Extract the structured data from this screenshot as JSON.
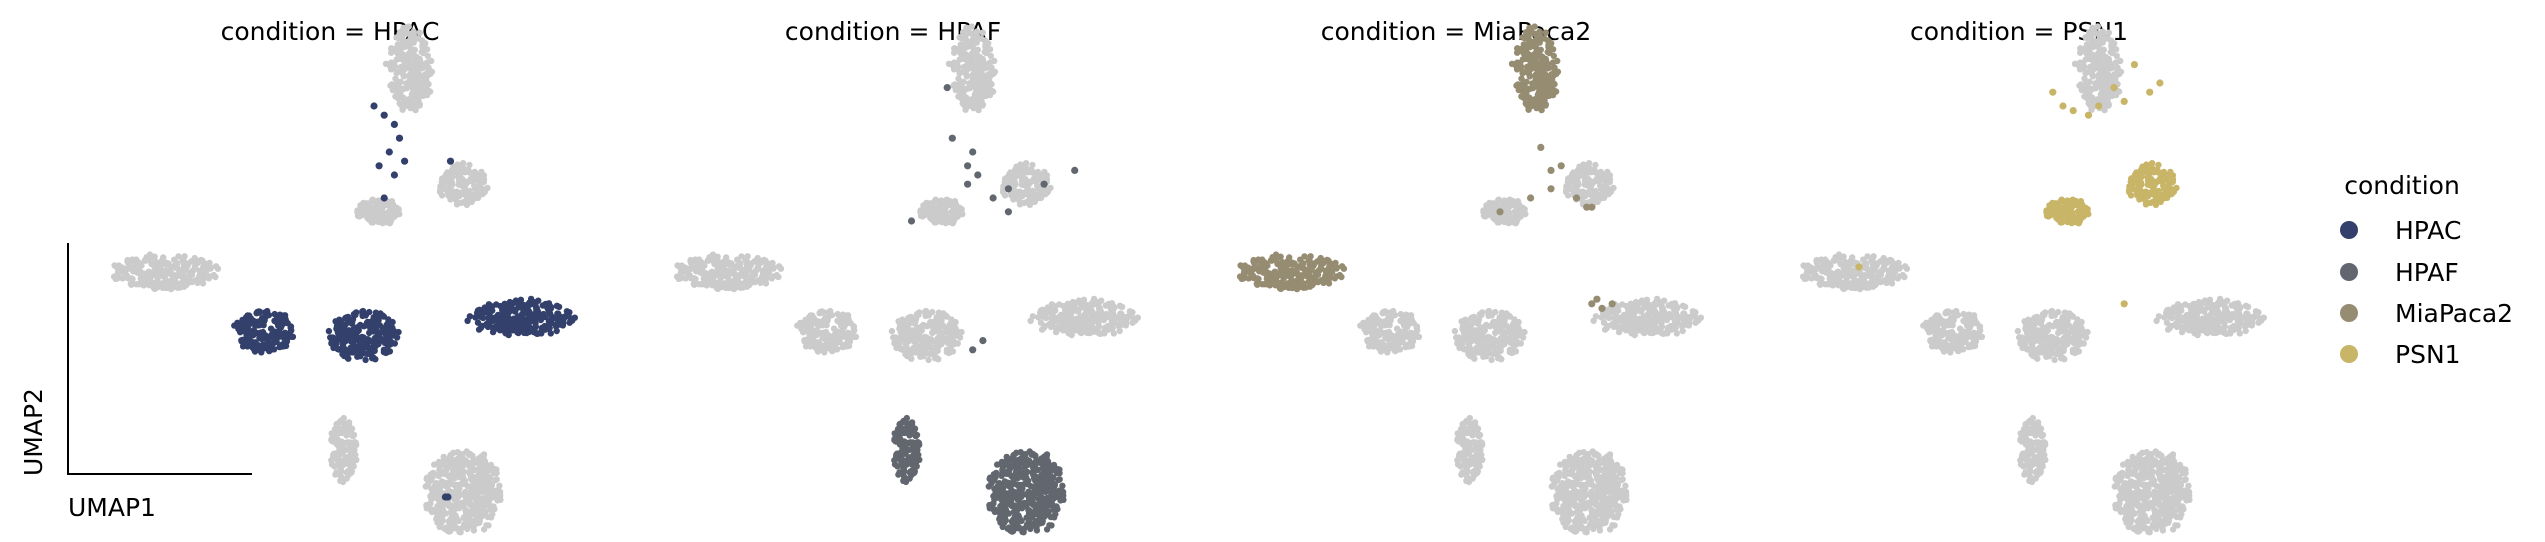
{
  "chart_data": {
    "type": "scatter",
    "plot_kind": "UMAP embedding, faceted by condition",
    "xlabel": "UMAP1",
    "ylabel": "UMAP2",
    "legend": {
      "title": "condition",
      "placement": "right",
      "entries": [
        {
          "name": "HPAC",
          "color": "#33406b"
        },
        {
          "name": "HPAF",
          "color": "#62666e"
        },
        {
          "name": "MiaPaca2",
          "color": "#958c72"
        },
        {
          "name": "PSN1",
          "color": "#c8b567"
        }
      ]
    },
    "background_color": "#cbcbcb",
    "clusters": [
      {
        "id": "top",
        "cx": 0.67,
        "cy": 0.88,
        "rx": 0.045,
        "ry": 0.095
      },
      {
        "id": "mid-right",
        "cx": 0.775,
        "cy": 0.63,
        "rx": 0.05,
        "ry": 0.045
      },
      {
        "id": "mid-left",
        "cx": 0.61,
        "cy": 0.57,
        "rx": 0.045,
        "ry": 0.028
      },
      {
        "id": "far-left",
        "cx": 0.19,
        "cy": 0.44,
        "rx": 0.105,
        "ry": 0.038
      },
      {
        "id": "center-left",
        "cx": 0.385,
        "cy": 0.31,
        "rx": 0.06,
        "ry": 0.045
      },
      {
        "id": "center",
        "cx": 0.58,
        "cy": 0.3,
        "rx": 0.07,
        "ry": 0.055
      },
      {
        "id": "right",
        "cx": 0.89,
        "cy": 0.34,
        "rx": 0.105,
        "ry": 0.04
      },
      {
        "id": "small-lower",
        "cx": 0.54,
        "cy": 0.05,
        "rx": 0.028,
        "ry": 0.07
      },
      {
        "id": "bottom",
        "cx": 0.775,
        "cy": -0.04,
        "rx": 0.075,
        "ry": 0.095
      }
    ],
    "panels": [
      {
        "title": "condition = HPAC",
        "condition": "HPAC",
        "highlight_clusters": [
          "center-left",
          "center",
          "right"
        ],
        "stray_points": [
          [
            0.6,
            0.8
          ],
          [
            0.62,
            0.78
          ],
          [
            0.64,
            0.76
          ],
          [
            0.65,
            0.73
          ],
          [
            0.63,
            0.7
          ],
          [
            0.66,
            0.68
          ],
          [
            0.61,
            0.67
          ],
          [
            0.64,
            0.65
          ],
          [
            0.75,
            0.68
          ],
          [
            0.62,
            0.6
          ],
          [
            0.74,
            -0.05
          ],
          [
            0.745,
            -0.05
          ]
        ]
      },
      {
        "title": "condition = HPAF",
        "condition": "HPAF",
        "highlight_clusters": [
          "small-lower",
          "bottom"
        ],
        "stray_points": [
          [
            0.62,
            0.84
          ],
          [
            0.63,
            0.73
          ],
          [
            0.67,
            0.7
          ],
          [
            0.66,
            0.67
          ],
          [
            0.68,
            0.65
          ],
          [
            0.74,
            0.62
          ],
          [
            0.81,
            0.63
          ],
          [
            0.87,
            0.66
          ],
          [
            0.71,
            0.6
          ],
          [
            0.74,
            0.57
          ],
          [
            0.55,
            0.55
          ],
          [
            0.66,
            0.63
          ],
          [
            0.69,
            0.29
          ],
          [
            0.67,
            0.27
          ]
        ]
      },
      {
        "title": "condition = MiaPaca2",
        "condition": "MiaPaca2",
        "highlight_clusters": [
          "top",
          "far-left"
        ],
        "stray_points": [
          [
            0.68,
            0.71
          ],
          [
            0.7,
            0.66
          ],
          [
            0.72,
            0.67
          ],
          [
            0.7,
            0.62
          ],
          [
            0.75,
            0.6
          ],
          [
            0.77,
            0.58
          ],
          [
            0.78,
            0.58
          ],
          [
            0.66,
            0.6
          ],
          [
            0.6,
            0.57
          ],
          [
            0.78,
            0.37
          ],
          [
            0.8,
            0.36
          ],
          [
            0.79,
            0.38
          ],
          [
            0.82,
            0.37
          ]
        ]
      },
      {
        "title": "condition = PSN1",
        "condition": "PSN1",
        "highlight_clusters": [
          "mid-right",
          "mid-left"
        ],
        "stray_points": [
          [
            0.58,
            0.83
          ],
          [
            0.6,
            0.8
          ],
          [
            0.62,
            0.79
          ],
          [
            0.65,
            0.78
          ],
          [
            0.67,
            0.8
          ],
          [
            0.72,
            0.81
          ],
          [
            0.74,
            0.89
          ],
          [
            0.77,
            0.83
          ],
          [
            0.79,
            0.85
          ],
          [
            0.7,
            0.84
          ],
          [
            0.2,
            0.45
          ],
          [
            0.72,
            0.37
          ]
        ]
      }
    ]
  }
}
